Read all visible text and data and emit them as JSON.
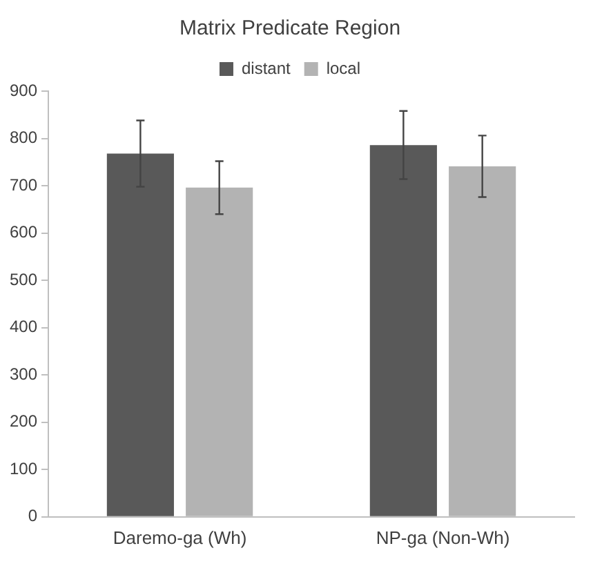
{
  "chart_data": {
    "type": "bar",
    "title": "Matrix Predicate Region",
    "categories": [
      "Daremo-ga (Wh)",
      "NP-ga (Non-Wh)"
    ],
    "series": [
      {
        "name": "distant",
        "color": "#595959",
        "values": [
          768,
          786
        ],
        "errors": [
          70,
          72
        ]
      },
      {
        "name": "local",
        "color": "#b3b3b3",
        "values": [
          696,
          741
        ],
        "errors": [
          56,
          65
        ]
      }
    ],
    "ylim": [
      0,
      900
    ],
    "yticks": [
      0,
      100,
      200,
      300,
      400,
      500,
      600,
      700,
      800,
      900
    ],
    "grid": false,
    "legend": "top"
  }
}
